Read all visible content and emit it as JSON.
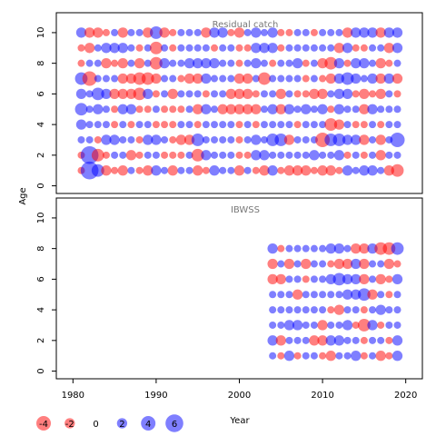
{
  "chart_data": {
    "type": "bubble",
    "shared_x_axis": {
      "label": "Year",
      "range": [
        1978,
        2022
      ],
      "ticks": [
        1980,
        1990,
        2000,
        2010,
        2020
      ]
    },
    "shared_y_axis": {
      "label": "Age",
      "range": [
        -0.5,
        11.3
      ],
      "ticks": [
        0,
        2,
        4,
        6,
        8,
        10
      ]
    },
    "colors": {
      "positive": "#0000ff",
      "negative": "#ff0000",
      "opacity": 0.5
    },
    "legend": {
      "placement": "bottom-left",
      "values": [
        -4,
        -2,
        0,
        2,
        4,
        6
      ]
    },
    "panels": [
      {
        "title": "Residual catch",
        "years": [
          1981,
          1982,
          1983,
          1984,
          1985,
          1986,
          1987,
          1988,
          1989,
          1990,
          1991,
          1992,
          1993,
          1994,
          1995,
          1996,
          1997,
          1998,
          1999,
          2000,
          2001,
          2002,
          2003,
          2004,
          2005,
          2006,
          2007,
          2008,
          2009,
          2010,
          2011,
          2012,
          2013,
          2014,
          2015,
          2016,
          2017,
          2018,
          2019
        ],
        "ages": [
          1,
          2,
          3,
          4,
          5,
          6,
          7,
          8,
          9,
          10
        ],
        "residuals": [
          [
            -1,
            6,
            3,
            -2,
            -1,
            -2,
            1,
            -1,
            -2,
            2,
            1,
            -2,
            1,
            1,
            -2,
            -1,
            2,
            1,
            1,
            -2,
            1,
            -1,
            -2,
            2,
            -1,
            -2,
            -2,
            -2,
            -1,
            -2,
            -2,
            -1,
            2,
            1,
            2,
            2,
            1,
            -2,
            -3
          ],
          [
            -1,
            6,
            -3,
            -1,
            1,
            1,
            -2,
            -1,
            1,
            1,
            -1,
            -1,
            -1,
            1,
            -3,
            2,
            1,
            1,
            1,
            -1,
            -1,
            2,
            2,
            1,
            1,
            1,
            1,
            1,
            2,
            1,
            1,
            2,
            -1,
            1,
            -1,
            1,
            -2,
            1,
            1
          ],
          [
            1,
            1,
            -1,
            2,
            2,
            1,
            1,
            -1,
            2,
            2,
            1,
            -1,
            -2,
            -2,
            3,
            1,
            1,
            1,
            1,
            -1,
            1,
            2,
            1,
            3,
            3,
            -2,
            1,
            1,
            1,
            -4,
            3,
            3,
            2,
            2,
            -2,
            1,
            -2,
            1,
            4
          ],
          [
            2,
            1,
            1,
            1,
            -1,
            1,
            -1,
            1,
            1,
            -1,
            -1,
            -1,
            1,
            1,
            -1,
            1,
            1,
            1,
            1,
            -1,
            1,
            -1,
            1,
            1,
            1,
            1,
            -1,
            1,
            1,
            1,
            -3,
            -2,
            1,
            -1,
            -1,
            1,
            -1,
            1,
            1
          ],
          [
            3,
            1,
            2,
            1,
            -1,
            2,
            2,
            -1,
            -1,
            1,
            -1,
            -1,
            -1,
            1,
            -2,
            2,
            1,
            -2,
            -2,
            -2,
            -2,
            -2,
            1,
            2,
            -2,
            2,
            1,
            2,
            1,
            2,
            -1,
            2,
            1,
            1,
            -2,
            2,
            1,
            1,
            1
          ],
          [
            2,
            1,
            3,
            2,
            -2,
            -2,
            -2,
            -3,
            2,
            -1,
            1,
            -2,
            1,
            1,
            1,
            -1,
            1,
            1,
            -2,
            -2,
            -2,
            -1,
            1,
            1,
            -2,
            1,
            -1,
            -1,
            -2,
            -2,
            1,
            2,
            2,
            -1,
            -2,
            -1,
            -2,
            1,
            -1
          ],
          [
            3,
            -4,
            1,
            1,
            1,
            -2,
            -2,
            -3,
            -3,
            -2,
            1,
            1,
            -1,
            -2,
            -2,
            2,
            1,
            1,
            1,
            -2,
            -2,
            1,
            -3,
            1,
            1,
            1,
            1,
            -1,
            1,
            -1,
            -2,
            2,
            3,
            2,
            1,
            2,
            -2,
            2,
            -2
          ],
          [
            -1,
            1,
            1,
            -2,
            -1,
            -2,
            1,
            -2,
            1,
            -3,
            2,
            1,
            1,
            2,
            2,
            2,
            2,
            1,
            1,
            -1,
            1,
            2,
            1,
            -1,
            1,
            1,
            2,
            -1,
            1,
            -2,
            -3,
            2,
            -1,
            2,
            2,
            1,
            -2,
            -1,
            1
          ],
          [
            -1,
            -2,
            1,
            2,
            2,
            2,
            1,
            -1,
            1,
            -3,
            1,
            -1,
            1,
            1,
            1,
            1,
            -1,
            1,
            1,
            -1,
            -1,
            2,
            2,
            2,
            -1,
            1,
            1,
            1,
            1,
            1,
            1,
            -2,
            2,
            -1,
            -1,
            1,
            1,
            -2,
            2
          ],
          [
            2,
            -2,
            -2,
            -1,
            1,
            -2,
            1,
            1,
            -2,
            3,
            -2,
            -1,
            1,
            1,
            1,
            -2,
            2,
            2,
            -1,
            -2,
            1,
            2,
            1,
            2,
            -1,
            -1,
            1,
            1,
            -1,
            1,
            1,
            1,
            -2,
            2,
            2,
            2,
            -2,
            2,
            2
          ]
        ]
      },
      {
        "title": "IBWSS",
        "years": [
          2004,
          2005,
          2006,
          2007,
          2008,
          2009,
          2010,
          2011,
          2012,
          2013,
          2014,
          2015,
          2016,
          2017,
          2018,
          2019
        ],
        "ages": [
          1,
          2,
          3,
          4,
          5,
          6,
          7,
          8
        ],
        "residuals": [
          [
            1,
            -1,
            2,
            -1,
            1,
            1,
            -1,
            -2,
            1,
            1,
            2,
            -1,
            1,
            -2,
            -1,
            2
          ],
          [
            2,
            -2,
            1,
            1,
            1,
            -2,
            -2,
            2,
            2,
            1,
            1,
            -1,
            1,
            1,
            -1,
            2
          ],
          [
            1,
            1,
            2,
            2,
            1,
            1,
            -2,
            1,
            1,
            2,
            -1,
            -3,
            2,
            -1,
            1,
            1
          ],
          [
            1,
            1,
            1,
            1,
            1,
            1,
            1,
            -1,
            -2,
            1,
            1,
            -1,
            1,
            2,
            1,
            1
          ],
          [
            1,
            1,
            1,
            -2,
            1,
            1,
            1,
            1,
            1,
            2,
            2,
            3,
            -2,
            1,
            -1,
            1
          ],
          [
            -2,
            -2,
            1,
            1,
            -1,
            1,
            1,
            2,
            3,
            2,
            2,
            -2,
            1,
            -2,
            -1,
            2
          ],
          [
            -2,
            1,
            -2,
            1,
            -2,
            1,
            1,
            -1,
            -2,
            -2,
            2,
            -2,
            1,
            1,
            -2,
            -1
          ],
          [
            2,
            -1,
            1,
            1,
            1,
            1,
            1,
            2,
            2,
            1,
            -2,
            -2,
            2,
            -3,
            -3,
            3
          ]
        ]
      }
    ]
  }
}
